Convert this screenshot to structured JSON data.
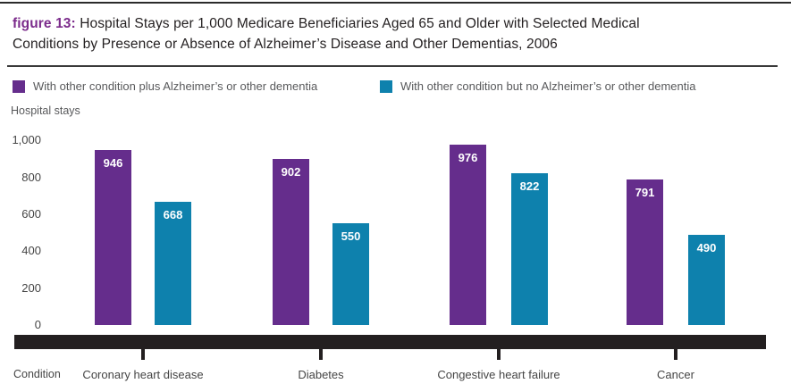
{
  "figure": {
    "label": "figure 13:",
    "title_lines": [
      "Hospital Stays per 1,000 Medicare Beneficiaries Aged 65 and Older with Selected Medical",
      "Conditions by Presence or Absence of Alzheimer’s Disease and Other Dementias, 2006"
    ]
  },
  "legend": [
    {
      "label": "With other condition plus Alzheimer’s or other dementia",
      "color": "#652d8c"
    },
    {
      "label": "With other condition but no Alzheimer’s or other dementia",
      "color": "#0e81ad"
    }
  ],
  "axis": {
    "y_title": "Hospital stays",
    "x_title": "Condition",
    "y_ticks": [
      {
        "label": "1,000",
        "value": 1000
      },
      {
        "label": "800",
        "value": 800
      },
      {
        "label": "600",
        "value": 600
      },
      {
        "label": "400",
        "value": 400
      },
      {
        "label": "200",
        "value": 200
      },
      {
        "label": "0",
        "value": 0
      }
    ]
  },
  "chart_data": {
    "type": "bar",
    "title": "figure 13: Hospital Stays per 1,000 Medicare Beneficiaries Aged 65 and Older with Selected Medical Conditions by Presence or Absence of Alzheimer’s Disease and Other Dementias, 2006",
    "categories": [
      "Coronary heart disease",
      "Diabetes",
      "Congestive heart failure",
      "Cancer"
    ],
    "series": [
      {
        "name": "With other condition plus Alzheimer’s or other dementia",
        "color": "#652d8c",
        "values": [
          946,
          902,
          976,
          791
        ]
      },
      {
        "name": "With other condition but no Alzheimer’s or other dementia",
        "color": "#0e81ad",
        "values": [
          668,
          550,
          822,
          490
        ]
      }
    ],
    "xlabel": "Condition",
    "ylabel": "Hospital stays",
    "ylim": [
      0,
      1000
    ],
    "grid": false,
    "legend_position": "top",
    "value_labels": "inside-top"
  },
  "colors": {
    "accent_purple": "#7b2b8b",
    "bar_purple": "#652d8c",
    "bar_teal": "#0e81ad",
    "axis_band": "#231f20",
    "text_dark": "#231f20",
    "text_gray": "#58595b"
  }
}
